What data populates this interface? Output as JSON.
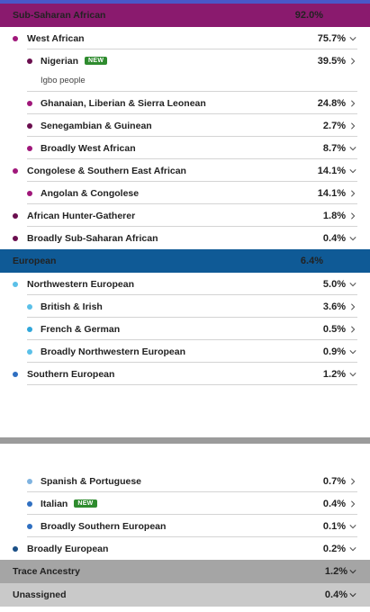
{
  "colors": {
    "sub_saharan_header": "#8a1a6e",
    "european_header": "#0f5a96",
    "west_african_dot": "#a0177a",
    "dark_purple_dot": "#6a0e4e",
    "nw_euro_dot": "#5bc0e8",
    "s_euro_dot": "#2f6fc1",
    "broadly_euro_dot": "#1a4f86",
    "spanish_dot": "#7fb3e0",
    "new_badge": "#2e8b2e"
  },
  "block1": {
    "sub_saharan": {
      "label": "Sub-Saharan African",
      "pct": "92.0%"
    },
    "west_african": {
      "label": "West African",
      "pct": "75.7%"
    },
    "nigerian": {
      "label": "Nigerian",
      "badge": "NEW",
      "pct": "39.5%",
      "note": "Igbo people"
    },
    "ghanaian": {
      "label": "Ghanaian, Liberian & Sierra Leonean",
      "pct": "24.8%"
    },
    "senegambian": {
      "label": "Senegambian & Guinean",
      "pct": "2.7%"
    },
    "broadly_west_african": {
      "label": "Broadly West African",
      "pct": "8.7%"
    },
    "congolese": {
      "label": "Congolese & Southern East African",
      "pct": "14.1%"
    },
    "angolan": {
      "label": "Angolan & Congolese",
      "pct": "14.1%"
    },
    "hunter_gatherer": {
      "label": "African Hunter-Gatherer",
      "pct": "1.8%"
    },
    "broadly_ssa": {
      "label": "Broadly Sub-Saharan African",
      "pct": "0.4%"
    },
    "european": {
      "label": "European",
      "pct": "6.4%"
    },
    "nw_european": {
      "label": "Northwestern European",
      "pct": "5.0%"
    },
    "british": {
      "label": "British & Irish",
      "pct": "3.6%"
    },
    "french": {
      "label": "French & German",
      "pct": "0.5%"
    },
    "broadly_nw": {
      "label": "Broadly Northwestern European",
      "pct": "0.9%"
    },
    "southern_european": {
      "label": "Southern European",
      "pct": "1.2%"
    }
  },
  "block2": {
    "spanish": {
      "label": "Spanish & Portuguese",
      "pct": "0.7%"
    },
    "italian": {
      "label": "Italian",
      "badge": "NEW",
      "pct": "0.4%"
    },
    "broadly_southern": {
      "label": "Broadly Southern European",
      "pct": "0.1%"
    },
    "broadly_european": {
      "label": "Broadly European",
      "pct": "0.2%"
    },
    "trace": {
      "label": "Trace Ancestry",
      "pct": "1.2%"
    },
    "unassigned": {
      "label": "Unassigned",
      "pct": "0.4%"
    }
  }
}
